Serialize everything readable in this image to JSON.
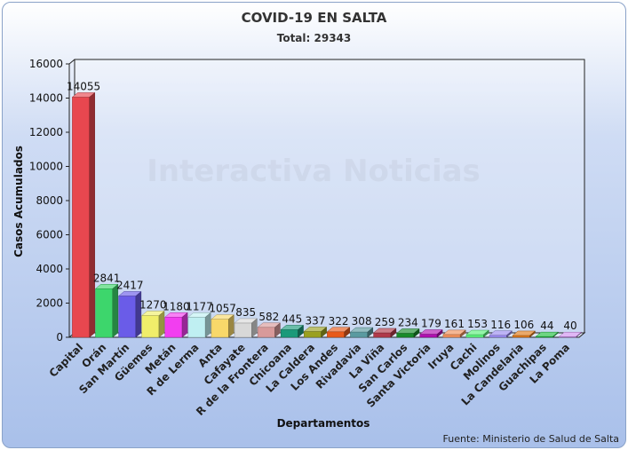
{
  "chart_data": {
    "type": "bar",
    "title": "COVID-19 EN SALTA",
    "subtitle": "Total: 29343",
    "xlabel": "Departamentos",
    "ylabel": "Casos Acumulados",
    "ylim": [
      0,
      16000
    ],
    "yticks": [
      0,
      2000,
      4000,
      6000,
      8000,
      10000,
      12000,
      14000,
      16000
    ],
    "grid": false,
    "watermark": "Interactiva Noticias",
    "source": "Fuente: Ministerio de Salud de Salta",
    "categories": [
      "Capital",
      "Orán",
      "San Martín",
      "Güemes",
      "Metán",
      "R de Lerma",
      "Anta",
      "Cafayate",
      "R de la Frontera",
      "Chicoana",
      "La Caldera",
      "Los Andes",
      "Rivadavia",
      "La Viña",
      "San Carlos",
      "Santa Victoria",
      "Iruya",
      "Cachi",
      "Molinos",
      "La Candelaria",
      "Guachipas",
      "La Poma"
    ],
    "values": [
      14055,
      2841,
      2417,
      1270,
      1180,
      1177,
      1057,
      835,
      582,
      445,
      337,
      322,
      308,
      259,
      234,
      179,
      161,
      153,
      116,
      106,
      44,
      40
    ],
    "colors": [
      "#e8474f",
      "#3dd66c",
      "#6a5ce8",
      "#f0ee6a",
      "#f23ef0",
      "#bfeff2",
      "#f8d86a",
      "#d8d8d8",
      "#d89a9a",
      "#1a9a7a",
      "#9aa020",
      "#e85a1a",
      "#5a9aa0",
      "#b03a4a",
      "#1a8a2a",
      "#b010b0",
      "#f0905a",
      "#5af07a",
      "#9a8af0",
      "#e07a1a",
      "#20c040",
      "#d090f0"
    ]
  }
}
